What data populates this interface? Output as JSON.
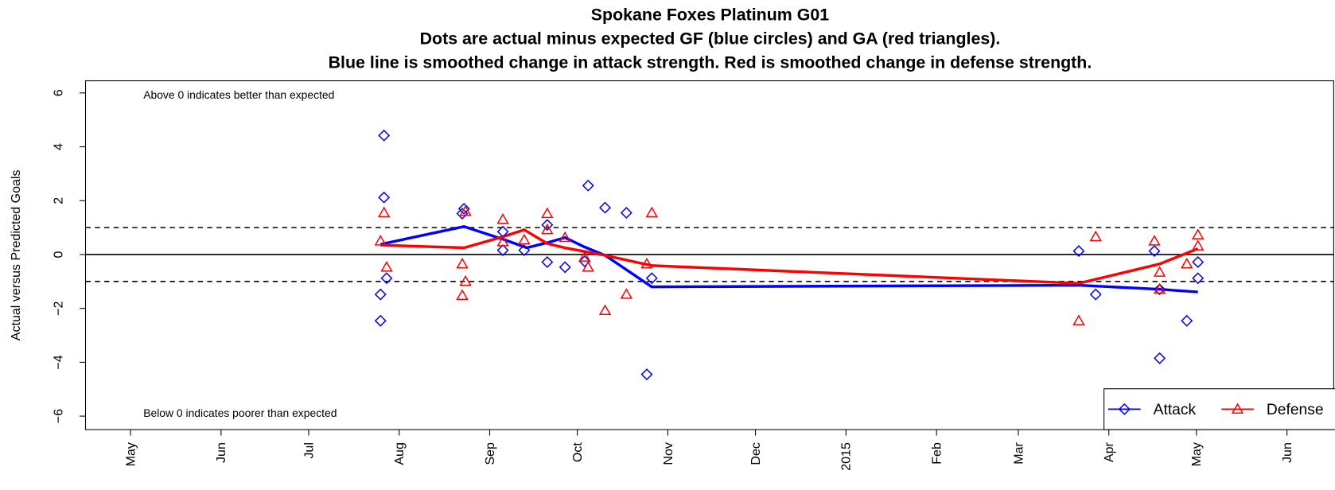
{
  "chart_data": {
    "type": "scatter",
    "title": "Spokane Foxes Platinum G01",
    "subtitle": [
      "Dots are actual minus expected GF (blue circles) and GA (red triangles).",
      "Blue line is smoothed change in attack strength. Red is smoothed change in defense strength."
    ],
    "y_label": "Actual versus Predicted Goals",
    "annotations": [
      "Above 0 indicates better than expected",
      "Below 0 indicates poorer than expected"
    ],
    "xlim": [
      -15.4,
      412
    ],
    "ylim": [
      -6.5,
      6.45
    ],
    "xticks": [
      {
        "value": 0,
        "label": "May"
      },
      {
        "value": 31,
        "label": "Jun"
      },
      {
        "value": 61,
        "label": "Jul"
      },
      {
        "value": 92,
        "label": "Aug"
      },
      {
        "value": 123,
        "label": "Sep"
      },
      {
        "value": 153,
        "label": "Oct"
      },
      {
        "value": 184,
        "label": "Nov"
      },
      {
        "value": 214,
        "label": "Dec"
      },
      {
        "value": 245,
        "label": "2015"
      },
      {
        "value": 276,
        "label": "Feb"
      },
      {
        "value": 304,
        "label": "Mar"
      },
      {
        "value": 335,
        "label": "Apr"
      },
      {
        "value": 365,
        "label": "May"
      },
      {
        "value": 396,
        "label": "Jun"
      }
    ],
    "yticks": [
      {
        "value": -6,
        "label": "−6"
      },
      {
        "value": -4,
        "label": "−4"
      },
      {
        "value": -2,
        "label": "−2"
      },
      0,
      2,
      4,
      6
    ],
    "reference_lines": [
      {
        "value": 1,
        "style": "dashed"
      },
      {
        "value": 0,
        "style": "solid"
      },
      {
        "value": -1,
        "style": "dashed"
      }
    ],
    "legend": "bottom right",
    "series": [
      {
        "name": "Attack",
        "color": "#0000ff",
        "marker": "diamond",
        "x": [
          86.8,
          86.8,
          87.7,
          85.6,
          85.6,
          114.2,
          113.6,
          127.5,
          127.5,
          134.8,
          142.7,
          142.7,
          148.8,
          156.7,
          155.5,
          162.5,
          169.8,
          176.8,
          178.5,
          324.7,
          330.5,
          350.6,
          352.4,
          352.4,
          361.7,
          365.5,
          365.5
        ],
        "values": [
          4.42,
          2.12,
          -0.88,
          -1.48,
          -2.46,
          1.7,
          1.52,
          0.85,
          0.16,
          0.16,
          1.1,
          -0.28,
          -0.47,
          2.56,
          -0.25,
          1.74,
          1.55,
          -4.45,
          -0.88,
          0.13,
          -1.48,
          0.13,
          -1.29,
          -3.85,
          -2.46,
          -0.28,
          -0.88
        ],
        "line_x": [
          85.6,
          114.2,
          127.5,
          135.7,
          142.7,
          148.8,
          155.5,
          162.5,
          178.5,
          324.7,
          352.4,
          365.5
        ],
        "line_values": [
          0.38,
          1.04,
          0.57,
          0.25,
          0.44,
          0.63,
          0.28,
          -0.03,
          -1.2,
          -1.14,
          -1.29,
          -1.39
        ]
      },
      {
        "name": "Defense",
        "color": "#ff0000",
        "marker": "triangle",
        "x": [
          86.8,
          85.6,
          87.7,
          113.6,
          113.6,
          114.7,
          114.7,
          127.5,
          127.5,
          134.8,
          142.7,
          142.7,
          148.8,
          155.5,
          156.7,
          162.5,
          169.8,
          176.8,
          178.5,
          324.7,
          330.5,
          350.6,
          352.4,
          352.4,
          361.7,
          365.5,
          365.5
        ],
        "values": [
          1.55,
          0.5,
          -0.47,
          -0.35,
          -1.52,
          -1.0,
          1.6,
          1.3,
          0.47,
          0.54,
          1.52,
          0.92,
          0.63,
          -0.1,
          -0.47,
          -2.08,
          -1.48,
          -0.35,
          1.55,
          -2.46,
          0.66,
          0.5,
          -0.66,
          -1.29,
          -0.35,
          0.73,
          0.32
        ],
        "line_x": [
          85.6,
          114.2,
          127.5,
          134.8,
          142.7,
          148.8,
          162.5,
          178.5,
          324.7,
          352.4,
          365.5
        ],
        "line_values": [
          0.35,
          0.25,
          0.66,
          0.92,
          0.41,
          0.25,
          -0.03,
          -0.41,
          -1.07,
          -0.35,
          0.22
        ]
      }
    ]
  }
}
